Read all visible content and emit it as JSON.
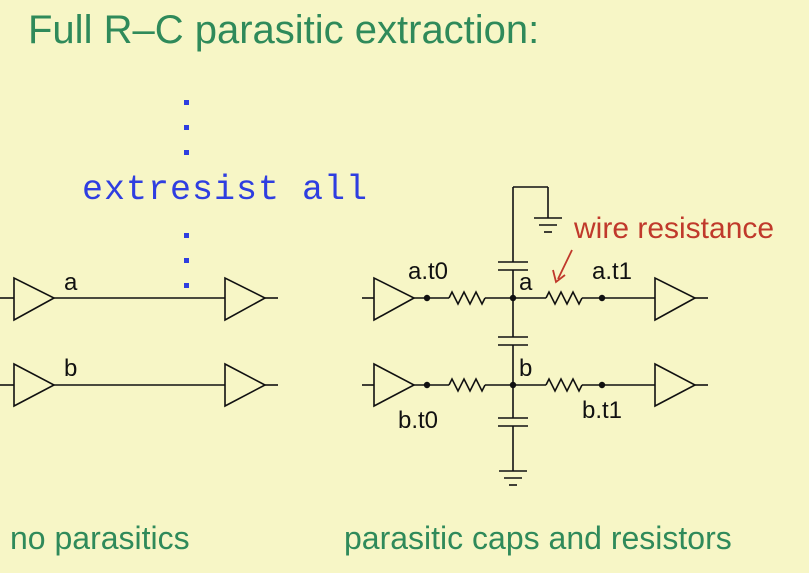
{
  "slide": {
    "title": "Full R–C parasitic extraction:",
    "command": "extresist all",
    "caption_left": "no parasitics",
    "caption_right": "parasitic caps and resistors"
  },
  "circuit_left": {
    "net_a": "a",
    "net_b": "b"
  },
  "circuit_right": {
    "node_a_t0": "a.t0",
    "node_a": "a",
    "node_a_t1": "a.t1",
    "node_b": "b",
    "node_b_t0": "b.t0",
    "node_b_t1": "b.t1",
    "annotation": "wire resistance"
  },
  "colors": {
    "background": "#f7f6c6",
    "title": "#2f8a5a",
    "code": "#2f3ee0",
    "annotation": "#c0392b"
  }
}
